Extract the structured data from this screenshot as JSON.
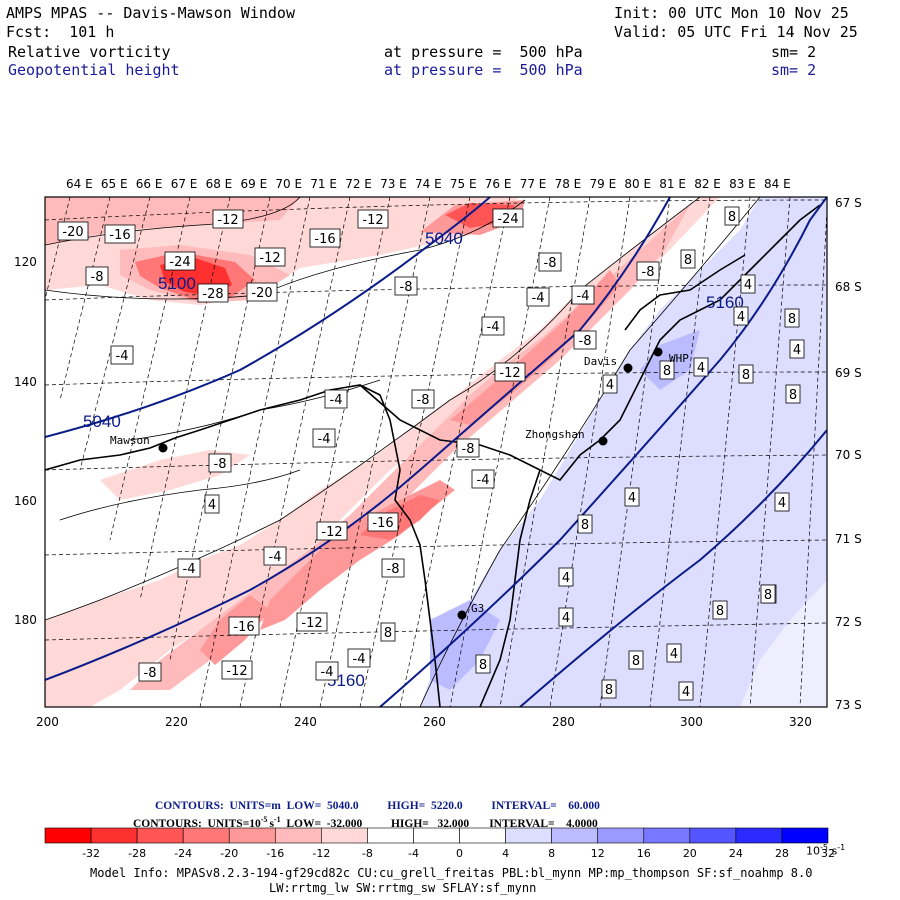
{
  "header": {
    "title": "AMPS MPAS -- Davis-Mawson Window",
    "fcst": "Fcst:  101 h",
    "init": "Init: 00 UTC Mon 10 Nov 25",
    "valid": "Valid: 05 UTC Fri 14 Nov 25",
    "field1": "Relative vorticity",
    "field1_level": "at pressure =  500 hPa",
    "field1_sm": "sm= 2",
    "field2": "Geopotential height",
    "field2_level": "at pressure =  500 hPa",
    "field2_sm": "sm= 2"
  },
  "map": {
    "lon_labels": [
      "64 E",
      "65 E",
      "66 E",
      "67 E",
      "68 E",
      "69 E",
      "70 E",
      "71 E",
      "72 E",
      "73 E",
      "74 E",
      "75 E",
      "76 E",
      "77 E",
      "78 E",
      "79 E",
      "80 E",
      "81 E",
      "82 E",
      "83 E",
      "84 E"
    ],
    "lat_labels": [
      "67 S",
      "68 S",
      "69 S",
      "70 S",
      "71 S",
      "72 S",
      "73 S"
    ],
    "x_ticks": [
      "200",
      "220",
      "240",
      "260",
      "280",
      "300",
      "320"
    ],
    "y_ticks": [
      "120",
      "140",
      "160",
      "180"
    ],
    "stations": [
      {
        "name": "Mawson"
      },
      {
        "name": "Davis"
      },
      {
        "name": "WHP"
      },
      {
        "name": "Zhongshan"
      },
      {
        "name": "G3"
      }
    ],
    "height_contours": [
      "5040",
      "5040",
      "5100",
      "5160",
      "5160"
    ],
    "vort_labels": [
      "-20",
      "-16",
      "-12",
      "-12",
      "-16",
      "-24",
      "-24",
      "-28",
      "-20",
      "-12",
      "-8",
      "-8",
      "-8",
      "-4",
      "-4",
      "-8",
      "-12",
      "-8",
      "-4",
      "-4",
      "-8",
      "-4",
      "-8",
      "-4",
      "-8",
      "-12",
      "-16",
      "-8",
      "-4",
      "-4",
      "-12",
      "-16",
      "-12",
      "-8",
      "-4",
      "-4",
      "-4",
      "8",
      "8",
      "4",
      "4",
      "8",
      "4",
      "4",
      "8",
      "4",
      "8",
      "8",
      "4",
      "4",
      "4",
      "8",
      "4",
      "8",
      "8",
      "8",
      "8",
      "4",
      "8",
      "8",
      "4",
      "4",
      "8"
    ]
  },
  "colorbar": {
    "contours1": "CONTOURS:  UNITS=m  LOW=  5040.0          HIGH=  5220.0          INTERVAL=    60.000",
    "contours2": "CONTOURS:  UNITS=10",
    "contours2_tail": "s",
    "contours2_rest": "  LOW=  -32.000          HIGH=   32.000       INTERVAL=    4.0000",
    "exp": "-5",
    "exp2": "-1",
    "ticks": [
      "-32",
      "-28",
      "-24",
      "-20",
      "-16",
      "-12",
      "-8",
      "-4",
      "0",
      "4",
      "8",
      "12",
      "16",
      "20",
      "24",
      "28",
      "32"
    ],
    "unit": "10",
    "unit_exp": "-5",
    "unit_s": "s",
    "unit_s_exp": "-1",
    "colors": [
      "#ff0000",
      "#ff3030",
      "#ff5555",
      "#ff7777",
      "#ff9999",
      "#ffbbbb",
      "#ffd8d8",
      "#ffffff",
      "#ffffff",
      "#ffffff",
      "#ddddff",
      "#bbbbff",
      "#9999ff",
      "#7777ff",
      "#5555ff",
      "#2a2aff",
      "#0000ff"
    ]
  },
  "footer": {
    "line1": "Model Info: MPASv8.2.3-194-gf29cd82c CU:cu_grell_freitas PBL:bl_mynn MP:mp_thompson SF:sf_noahmp 8.0",
    "line2": "LW:rrtmg_lw SW:rrtmg_sw SFLAY:sf_mynn"
  }
}
